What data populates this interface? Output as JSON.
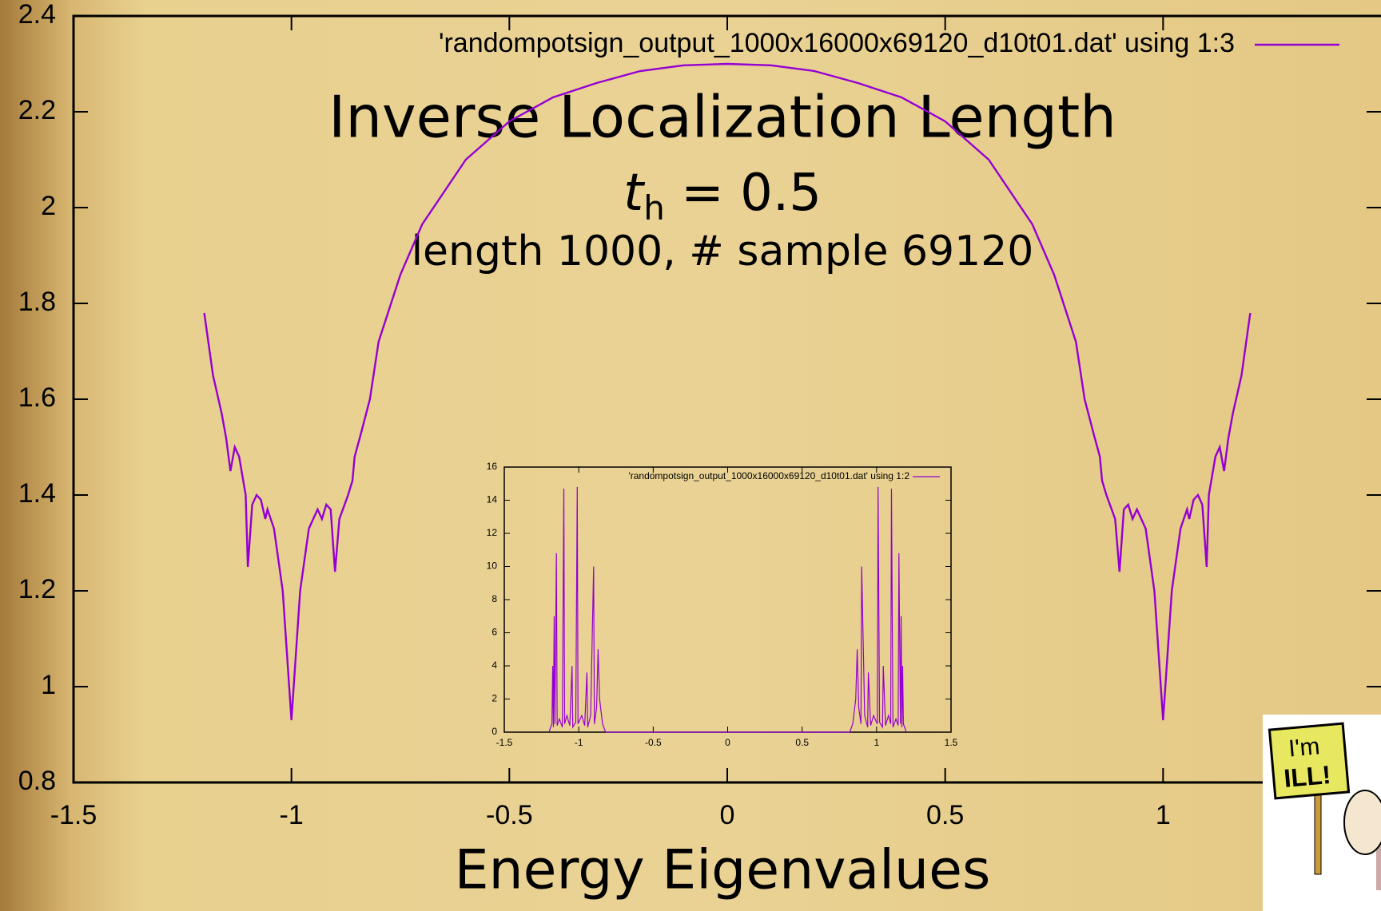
{
  "chart_data": [
    {
      "type": "line",
      "title": "Inverse Localization Length",
      "subtitle": {
        "var": "t",
        "sub": "h",
        "rest": " = 0.5"
      },
      "note": "length 1000, # sample 69120",
      "x_label": "Energy Eigenvalues",
      "xlim": [
        -1.5,
        1.5
      ],
      "xticks": [
        -1.5,
        -1,
        -0.5,
        0,
        0.5,
        1
      ],
      "ylim": [
        0.8,
        2.4
      ],
      "yticks": [
        0.8,
        1,
        1.2,
        1.4,
        1.6,
        1.8,
        2,
        2.2,
        2.4
      ],
      "series": [
        {
          "name": "'randompotsign_output_1000x16000x69120_d10t01.dat' using 1:3",
          "color": "#9400d3",
          "x": [
            -1.2,
            -1.18,
            -1.16,
            -1.15,
            -1.14,
            -1.13,
            -1.12,
            -1.105,
            -1.1,
            -1.09,
            -1.08,
            -1.07,
            -1.06,
            -1.055,
            -1.04,
            -1.02,
            -1.0,
            -0.98,
            -0.96,
            -0.94,
            -0.93,
            -0.92,
            -0.91,
            -0.9,
            -0.89,
            -0.87,
            -0.86,
            -0.855,
            -0.84,
            -0.82,
            -0.8,
            -0.75,
            -0.7,
            -0.6,
            -0.5,
            -0.4,
            -0.3,
            -0.2,
            -0.1,
            0,
            0.1,
            0.2,
            0.3,
            0.4,
            0.5,
            0.6,
            0.7,
            0.75,
            0.8,
            0.82,
            0.84,
            0.855,
            0.86,
            0.87,
            0.89,
            0.9,
            0.91,
            0.92,
            0.93,
            0.94,
            0.96,
            0.98,
            1.0,
            1.02,
            1.04,
            1.055,
            1.06,
            1.07,
            1.08,
            1.09,
            1.1,
            1.105,
            1.12,
            1.13,
            1.14,
            1.15,
            1.16,
            1.18,
            1.2
          ],
          "values": [
            1.78,
            1.65,
            1.57,
            1.52,
            1.45,
            1.5,
            1.48,
            1.4,
            1.25,
            1.38,
            1.4,
            1.39,
            1.35,
            1.37,
            1.33,
            1.2,
            0.93,
            1.2,
            1.33,
            1.37,
            1.35,
            1.38,
            1.37,
            1.24,
            1.35,
            1.4,
            1.43,
            1.48,
            1.53,
            1.6,
            1.72,
            1.86,
            1.965,
            2.1,
            2.18,
            2.23,
            2.26,
            2.285,
            2.297,
            2.3,
            2.297,
            2.285,
            2.26,
            2.23,
            2.18,
            2.1,
            1.965,
            1.86,
            1.72,
            1.6,
            1.53,
            1.48,
            1.43,
            1.4,
            1.35,
            1.24,
            1.37,
            1.38,
            1.35,
            1.37,
            1.33,
            1.2,
            0.93,
            1.2,
            1.33,
            1.37,
            1.35,
            1.39,
            1.4,
            1.38,
            1.25,
            1.4,
            1.48,
            1.5,
            1.45,
            1.52,
            1.57,
            1.65,
            1.78
          ]
        }
      ]
    },
    {
      "type": "line",
      "xlim": [
        -1.5,
        1.5
      ],
      "xticks": [
        -1.5,
        -1,
        -0.5,
        0,
        0.5,
        1,
        1.5
      ],
      "ylim": [
        0,
        16
      ],
      "yticks": [
        0,
        2,
        4,
        6,
        8,
        10,
        12,
        14,
        16
      ],
      "series": [
        {
          "name": "'randompotsign_output_1000x16000x69120_d10t01.dat' using 1:2",
          "color": "#9400d3",
          "x": [
            -1.2,
            -1.18,
            -1.175,
            -1.17,
            -1.165,
            -1.16,
            -1.15,
            -1.145,
            -1.13,
            -1.11,
            -1.1,
            -1.095,
            -1.08,
            -1.06,
            -1.045,
            -1.04,
            -1.02,
            -1.01,
            -1.005,
            -0.98,
            -0.96,
            -0.945,
            -0.94,
            -0.92,
            -0.9,
            -0.895,
            -0.88,
            -0.87,
            -0.86,
            -0.84,
            -0.82,
            0.82,
            0.84,
            0.86,
            0.87,
            0.88,
            0.895,
            0.9,
            0.92,
            0.94,
            0.945,
            0.96,
            0.98,
            1.005,
            1.01,
            1.02,
            1.04,
            1.045,
            1.06,
            1.08,
            1.095,
            1.1,
            1.11,
            1.13,
            1.145,
            1.15,
            1.16,
            1.165,
            1.17,
            1.175,
            1.18,
            1.2
          ],
          "values": [
            0,
            0.5,
            4,
            0.3,
            7,
            0.5,
            10.8,
            0.4,
            0.8,
            0.3,
            14.7,
            0.5,
            1,
            0.4,
            4,
            0.3,
            0.6,
            14.8,
            0.5,
            1,
            0.4,
            3.6,
            0.3,
            1,
            10,
            0.5,
            1.5,
            5,
            2,
            0.5,
            0,
            0,
            0.5,
            2,
            5,
            1.5,
            0.5,
            10,
            1,
            0.3,
            3.6,
            0.4,
            1,
            0.5,
            14.8,
            0.6,
            0.3,
            4,
            0.4,
            1,
            0.5,
            14.7,
            0.3,
            0.8,
            0.4,
            10.8,
            0.5,
            7,
            0.3,
            4,
            0.5,
            0
          ]
        }
      ]
    }
  ],
  "sticker": [
    "I'm",
    "ILL!"
  ]
}
